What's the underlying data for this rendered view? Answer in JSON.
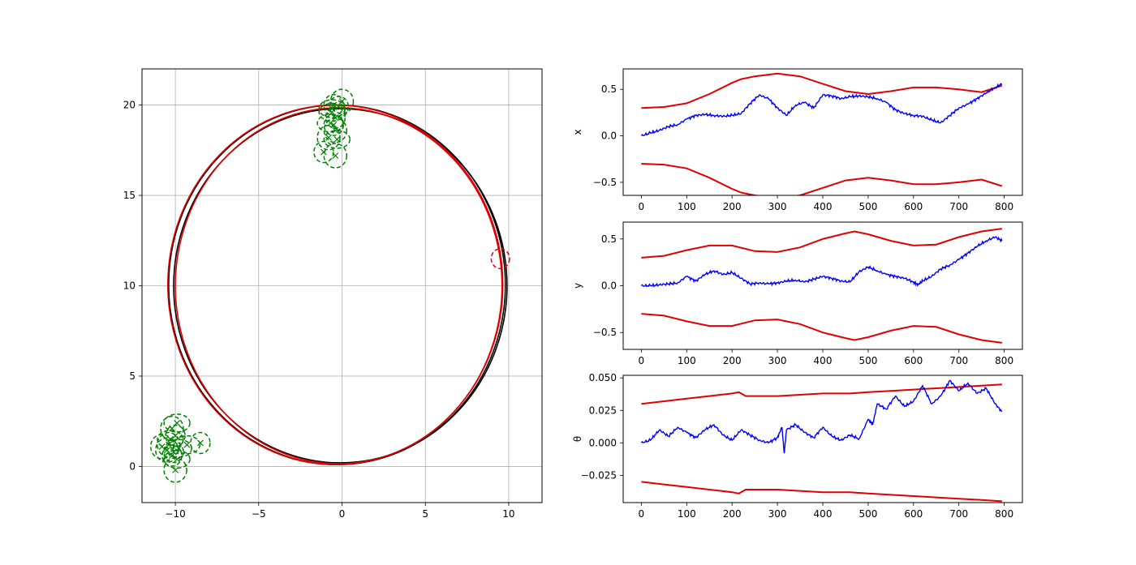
{
  "chart_data": [
    {
      "type": "line",
      "panel": "trajectory",
      "grid": true,
      "xlim": [
        -12,
        12
      ],
      "ylim": [
        -2,
        22
      ],
      "xticks": [
        "−10",
        "−5",
        "0",
        "5",
        "10"
      ],
      "yticks": [
        "0",
        "5",
        "10",
        "15",
        "20"
      ],
      "series": [
        {
          "color": "#000000",
          "kind": "ellipse",
          "center": [
            -0.3,
            10.05
          ],
          "radius": [
            10.1,
            9.95
          ]
        },
        {
          "color": "#000000",
          "kind": "ellipse",
          "center": [
            -0.1,
            10.0
          ],
          "radius": [
            10.0,
            9.8
          ]
        },
        {
          "color": "#e00000",
          "kind": "ellipse",
          "center": [
            -0.4,
            10.05
          ],
          "radius": [
            10.05,
            9.95
          ]
        },
        {
          "color": "#e00000",
          "kind": "ellipse",
          "center": [
            -0.2,
            10.0
          ],
          "radius": [
            9.8,
            9.85
          ]
        }
      ],
      "landmarks": {
        "color": "#008000",
        "points": [
          [
            -0.5,
            20.0
          ],
          [
            0.0,
            20.2
          ],
          [
            -0.6,
            19.6
          ],
          [
            -0.5,
            18.9
          ],
          [
            -0.4,
            18.6
          ],
          [
            -0.7,
            19.0
          ],
          [
            -0.4,
            19.3
          ],
          [
            -0.8,
            18.2
          ],
          [
            -0.3,
            18.1
          ],
          [
            -1.1,
            17.4
          ],
          [
            -0.4,
            17.2
          ],
          [
            -0.6,
            19.8
          ],
          [
            -0.2,
            19.9
          ],
          [
            -10.2,
            2.1
          ],
          [
            -9.9,
            2.4
          ],
          [
            -10.0,
            1.7
          ],
          [
            -10.4,
            1.2
          ],
          [
            -9.8,
            1.0
          ],
          [
            -10.1,
            0.8
          ],
          [
            -10.5,
            0.9
          ],
          [
            -9.9,
            0.4
          ],
          [
            -10.2,
            0.6
          ],
          [
            -10.0,
            -0.2
          ],
          [
            -9.3,
            1.2
          ],
          [
            -8.5,
            1.3
          ],
          [
            -10.8,
            1.1
          ],
          [
            -10.3,
            1.5
          ]
        ]
      },
      "current_pose_ellipse": {
        "color": "#e00000",
        "center": [
          9.5,
          11.5
        ],
        "radius": [
          0.55,
          0.55
        ]
      }
    },
    {
      "type": "line",
      "panel": "x",
      "ylabel": "x",
      "xlim": [
        -40,
        840
      ],
      "ylim": [
        -0.64,
        0.72
      ],
      "xticks": [
        "0",
        "100",
        "200",
        "300",
        "400",
        "500",
        "600",
        "700",
        "800"
      ],
      "yticks": [
        "−0.5",
        "0.0",
        "0.5"
      ],
      "ytick_values": [
        -0.5,
        0.0,
        0.5
      ],
      "error": {
        "color": "#0000ff",
        "x": [
          0,
          20,
          40,
          60,
          80,
          100,
          120,
          140,
          160,
          180,
          200,
          220,
          240,
          260,
          280,
          300,
          320,
          340,
          360,
          380,
          400,
          420,
          440,
          460,
          480,
          500,
          520,
          540,
          560,
          580,
          600,
          620,
          640,
          660,
          680,
          700,
          720,
          740,
          760,
          780,
          795
        ],
        "y": [
          0.0,
          0.03,
          0.06,
          0.1,
          0.12,
          0.18,
          0.22,
          0.23,
          0.22,
          0.21,
          0.22,
          0.24,
          0.35,
          0.44,
          0.4,
          0.3,
          0.22,
          0.33,
          0.36,
          0.3,
          0.44,
          0.43,
          0.4,
          0.42,
          0.43,
          0.42,
          0.4,
          0.36,
          0.28,
          0.24,
          0.22,
          0.21,
          0.17,
          0.14,
          0.22,
          0.3,
          0.34,
          0.4,
          0.46,
          0.52,
          0.56
        ]
      },
      "upper": {
        "color": "#e00000",
        "x": [
          0,
          50,
          100,
          150,
          200,
          220,
          250,
          300,
          350,
          400,
          450,
          500,
          550,
          600,
          650,
          700,
          750,
          795
        ],
        "y": [
          0.3,
          0.31,
          0.35,
          0.45,
          0.57,
          0.61,
          0.64,
          0.67,
          0.64,
          0.56,
          0.48,
          0.45,
          0.48,
          0.52,
          0.52,
          0.5,
          0.47,
          0.54
        ]
      },
      "lower": {
        "color": "#e00000",
        "x": [
          0,
          50,
          100,
          150,
          200,
          220,
          250,
          300,
          350,
          400,
          450,
          500,
          550,
          600,
          650,
          700,
          750,
          795
        ],
        "y": [
          -0.3,
          -0.31,
          -0.35,
          -0.45,
          -0.57,
          -0.61,
          -0.64,
          -0.67,
          -0.64,
          -0.56,
          -0.48,
          -0.45,
          -0.48,
          -0.52,
          -0.52,
          -0.5,
          -0.47,
          -0.54
        ]
      }
    },
    {
      "type": "line",
      "panel": "y",
      "ylabel": "y",
      "xlim": [
        -40,
        840
      ],
      "ylim": [
        -0.68,
        0.68
      ],
      "xticks": [
        "0",
        "100",
        "200",
        "300",
        "400",
        "500",
        "600",
        "700",
        "800"
      ],
      "yticks": [
        "−0.5",
        "0.0",
        "0.5"
      ],
      "ytick_values": [
        -0.5,
        0.0,
        0.5
      ],
      "error": {
        "color": "#0000ff",
        "x": [
          0,
          20,
          40,
          60,
          80,
          100,
          120,
          140,
          160,
          180,
          200,
          220,
          240,
          260,
          280,
          300,
          320,
          340,
          360,
          380,
          400,
          420,
          440,
          460,
          480,
          500,
          520,
          540,
          560,
          580,
          600,
          610,
          620,
          640,
          660,
          680,
          700,
          720,
          740,
          760,
          780,
          795
        ],
        "y": [
          0.0,
          0.0,
          0.01,
          0.02,
          0.03,
          0.1,
          0.05,
          0.12,
          0.16,
          0.12,
          0.14,
          0.08,
          0.02,
          0.03,
          0.02,
          0.03,
          0.05,
          0.06,
          0.04,
          0.07,
          0.1,
          0.08,
          0.05,
          0.04,
          0.15,
          0.2,
          0.16,
          0.12,
          0.1,
          0.08,
          0.04,
          0.01,
          0.05,
          0.1,
          0.18,
          0.22,
          0.28,
          0.35,
          0.42,
          0.48,
          0.52,
          0.48
        ]
      },
      "upper": {
        "color": "#e00000",
        "x": [
          0,
          50,
          100,
          150,
          200,
          250,
          300,
          350,
          400,
          450,
          470,
          500,
          550,
          600,
          650,
          700,
          750,
          795
        ],
        "y": [
          0.3,
          0.32,
          0.38,
          0.43,
          0.43,
          0.37,
          0.36,
          0.41,
          0.5,
          0.56,
          0.58,
          0.55,
          0.48,
          0.43,
          0.44,
          0.52,
          0.58,
          0.61
        ]
      },
      "lower": {
        "color": "#e00000",
        "x": [
          0,
          50,
          100,
          150,
          200,
          250,
          300,
          350,
          400,
          450,
          470,
          500,
          550,
          600,
          650,
          700,
          750,
          795
        ],
        "y": [
          -0.3,
          -0.32,
          -0.38,
          -0.43,
          -0.43,
          -0.37,
          -0.36,
          -0.41,
          -0.5,
          -0.56,
          -0.58,
          -0.55,
          -0.48,
          -0.43,
          -0.44,
          -0.52,
          -0.58,
          -0.61
        ]
      }
    },
    {
      "type": "line",
      "panel": "theta",
      "ylabel": "θ",
      "xlim": [
        -40,
        840
      ],
      "ylim": [
        -0.046,
        0.052
      ],
      "xticks": [
        "0",
        "100",
        "200",
        "300",
        "400",
        "500",
        "600",
        "700",
        "800"
      ],
      "yticks": [
        "−0.025",
        "0.000",
        "0.025",
        "0.050"
      ],
      "ytick_values": [
        -0.025,
        0.0,
        0.025,
        0.05
      ],
      "error": {
        "color": "#0000ff",
        "x": [
          0,
          20,
          40,
          60,
          80,
          100,
          120,
          140,
          160,
          180,
          200,
          220,
          240,
          260,
          280,
          300,
          310,
          315,
          320,
          340,
          360,
          380,
          400,
          420,
          440,
          460,
          480,
          500,
          510,
          520,
          540,
          560,
          580,
          600,
          620,
          640,
          660,
          680,
          700,
          720,
          740,
          760,
          780,
          795
        ],
        "y": [
          0.0,
          0.002,
          0.01,
          0.005,
          0.012,
          0.008,
          0.004,
          0.01,
          0.014,
          0.006,
          0.002,
          0.01,
          0.006,
          0.002,
          0.0,
          0.004,
          0.012,
          -0.008,
          0.01,
          0.014,
          0.008,
          0.004,
          0.012,
          0.005,
          0.002,
          0.006,
          0.003,
          0.018,
          0.014,
          0.03,
          0.026,
          0.036,
          0.028,
          0.032,
          0.044,
          0.03,
          0.036,
          0.048,
          0.04,
          0.046,
          0.038,
          0.042,
          0.03,
          0.024
        ]
      },
      "upper": {
        "color": "#e00000",
        "x": [
          0,
          50,
          100,
          150,
          200,
          215,
          230,
          300,
          350,
          400,
          460,
          500,
          550,
          600,
          650,
          700,
          750,
          795
        ],
        "y": [
          0.03,
          0.032,
          0.034,
          0.036,
          0.038,
          0.039,
          0.036,
          0.036,
          0.037,
          0.038,
          0.038,
          0.039,
          0.04,
          0.041,
          0.042,
          0.043,
          0.044,
          0.045
        ]
      },
      "lower": {
        "color": "#e00000",
        "x": [
          0,
          50,
          100,
          150,
          200,
          215,
          230,
          300,
          350,
          400,
          460,
          500,
          550,
          600,
          650,
          700,
          750,
          795
        ],
        "y": [
          -0.03,
          -0.032,
          -0.034,
          -0.036,
          -0.038,
          -0.039,
          -0.036,
          -0.036,
          -0.037,
          -0.038,
          -0.038,
          -0.039,
          -0.04,
          -0.041,
          -0.042,
          -0.043,
          -0.044,
          -0.045
        ]
      }
    }
  ]
}
